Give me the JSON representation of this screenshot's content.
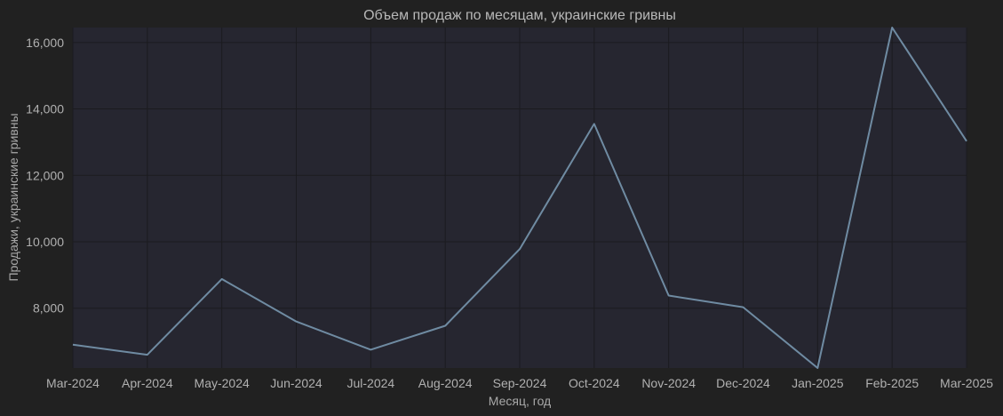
{
  "chart_data": {
    "type": "line",
    "title": "Объем продаж по месяцам, украинские гривны",
    "xlabel": "Месяц, год",
    "ylabel": "Продажи, украинские гривны",
    "categories": [
      "Mar-2024",
      "Apr-2024",
      "May-2024",
      "Jun-2024",
      "Jul-2024",
      "Aug-2024",
      "Sep-2024",
      "Oct-2024",
      "Nov-2024",
      "Dec-2024",
      "Jan-2025",
      "Feb-2025",
      "Mar-2025"
    ],
    "series": [
      {
        "values": [
          6900,
          6600,
          8880,
          7600,
          6750,
          7470,
          9780,
          13550,
          8380,
          8030,
          6200,
          16450,
          13030
        ]
      }
    ],
    "ylim": [
      6200,
      16450
    ],
    "yticks": [
      8000,
      10000,
      12000,
      14000,
      16000
    ],
    "ytick_labels": [
      "8,000",
      "10,000",
      "12,000",
      "14,000",
      "16,000"
    ],
    "grid": true,
    "colors": {
      "background": "#212121",
      "plot_background": "#262630",
      "grid": "#1b1b1f",
      "line": "#6f8ba2"
    }
  }
}
